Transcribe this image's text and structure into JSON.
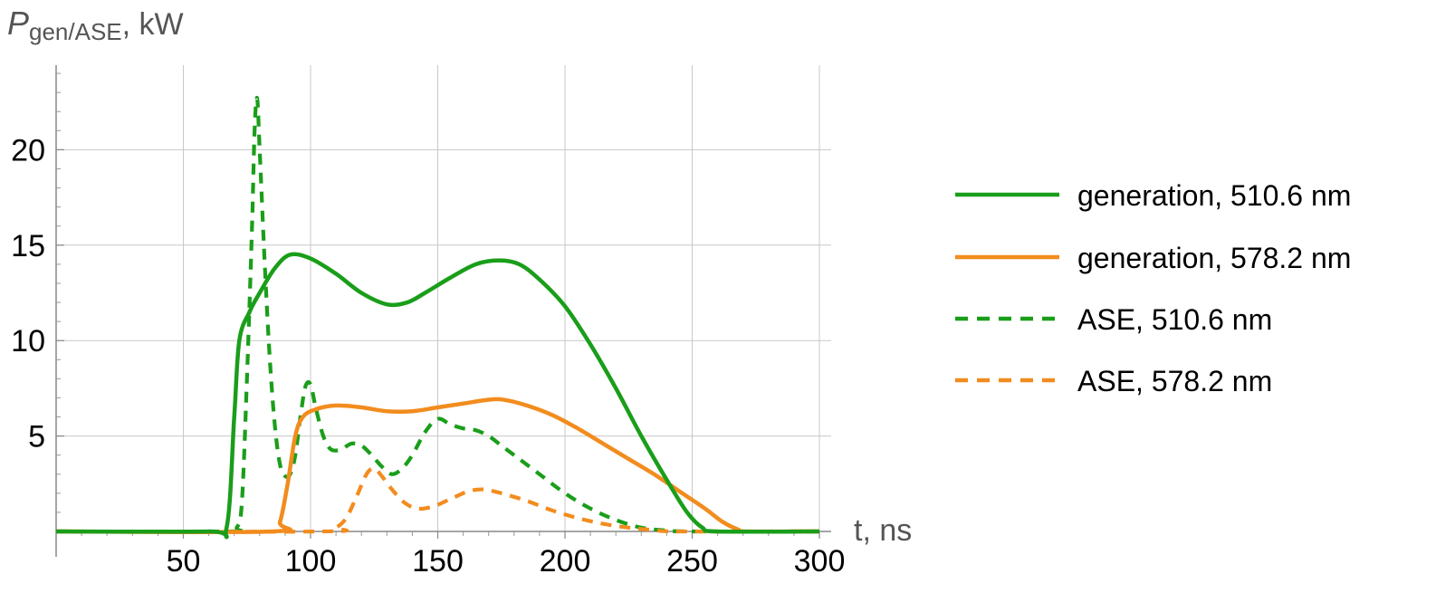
{
  "chart_data": {
    "type": "line",
    "ylabel": {
      "symbol": "P",
      "subscript": "gen/ASE",
      "unit": ", kW"
    },
    "xlabel": "t, ns",
    "xlim": [
      0,
      300
    ],
    "ylim": [
      0,
      25
    ],
    "x_ticks": [
      "50",
      "100",
      "150",
      "200",
      "250",
      "300"
    ],
    "y_ticks": [
      "5",
      "10",
      "15",
      "20"
    ],
    "grid": true,
    "legend_position": "right",
    "series": [
      {
        "name": "generation, 510.6 nm",
        "color": "#1a9e1a",
        "dash": false,
        "points": [
          [
            0,
            0
          ],
          [
            60,
            0
          ],
          [
            67,
            0.2
          ],
          [
            70,
            6
          ],
          [
            72,
            10
          ],
          [
            76,
            11.5
          ],
          [
            80,
            12.5
          ],
          [
            86,
            13.8
          ],
          [
            92,
            14.5
          ],
          [
            100,
            14.3
          ],
          [
            110,
            13.5
          ],
          [
            120,
            12.5
          ],
          [
            130,
            11.9
          ],
          [
            138,
            12.0
          ],
          [
            145,
            12.5
          ],
          [
            155,
            13.3
          ],
          [
            165,
            14.0
          ],
          [
            174,
            14.2
          ],
          [
            182,
            14.0
          ],
          [
            190,
            13.2
          ],
          [
            200,
            11.8
          ],
          [
            210,
            9.8
          ],
          [
            220,
            7.5
          ],
          [
            230,
            5.0
          ],
          [
            240,
            2.7
          ],
          [
            248,
            1.0
          ],
          [
            254,
            0.2
          ],
          [
            260,
            0
          ],
          [
            300,
            0
          ]
        ]
      },
      {
        "name": "generation, 578.2 nm",
        "color": "#f28c1e",
        "dash": false,
        "points": [
          [
            0,
            0
          ],
          [
            85,
            0
          ],
          [
            88,
            0.5
          ],
          [
            91,
            2.5
          ],
          [
            94,
            5.0
          ],
          [
            97,
            6.0
          ],
          [
            102,
            6.4
          ],
          [
            110,
            6.6
          ],
          [
            120,
            6.5
          ],
          [
            130,
            6.3
          ],
          [
            140,
            6.3
          ],
          [
            150,
            6.5
          ],
          [
            160,
            6.7
          ],
          [
            170,
            6.9
          ],
          [
            176,
            6.9
          ],
          [
            185,
            6.6
          ],
          [
            195,
            6.1
          ],
          [
            205,
            5.4
          ],
          [
            215,
            4.6
          ],
          [
            225,
            3.8
          ],
          [
            235,
            3.0
          ],
          [
            245,
            2.1
          ],
          [
            255,
            1.2
          ],
          [
            262,
            0.5
          ],
          [
            268,
            0.1
          ],
          [
            272,
            0
          ],
          [
            300,
            0
          ]
        ]
      },
      {
        "name": "ASE, 510.6 nm",
        "color": "#1a9e1a",
        "dash": true,
        "points": [
          [
            0,
            0
          ],
          [
            68,
            0
          ],
          [
            71,
            0.2
          ],
          [
            73,
            1.5
          ],
          [
            75,
            8
          ],
          [
            77,
            16
          ],
          [
            78,
            21
          ],
          [
            79,
            22.7
          ],
          [
            80,
            20
          ],
          [
            82,
            14
          ],
          [
            84,
            9
          ],
          [
            86,
            5.5
          ],
          [
            88,
            3.5
          ],
          [
            90,
            2.9
          ],
          [
            92,
            3.0
          ],
          [
            94,
            4.0
          ],
          [
            96,
            6.0
          ],
          [
            98,
            7.6
          ],
          [
            100,
            7.7
          ],
          [
            102,
            6.5
          ],
          [
            105,
            5.0
          ],
          [
            108,
            4.3
          ],
          [
            112,
            4.3
          ],
          [
            116,
            4.6
          ],
          [
            120,
            4.5
          ],
          [
            124,
            4.0
          ],
          [
            128,
            3.4
          ],
          [
            132,
            3.0
          ],
          [
            136,
            3.3
          ],
          [
            140,
            4.0
          ],
          [
            145,
            5.2
          ],
          [
            150,
            5.9
          ],
          [
            155,
            5.6
          ],
          [
            160,
            5.4
          ],
          [
            165,
            5.3
          ],
          [
            170,
            5.0
          ],
          [
            175,
            4.5
          ],
          [
            180,
            4.0
          ],
          [
            190,
            3.0
          ],
          [
            200,
            2.0
          ],
          [
            210,
            1.2
          ],
          [
            220,
            0.6
          ],
          [
            230,
            0.2
          ],
          [
            240,
            0.05
          ],
          [
            250,
            0
          ],
          [
            300,
            0
          ]
        ]
      },
      {
        "name": "ASE, 578.2 nm",
        "color": "#f28c1e",
        "dash": true,
        "points": [
          [
            0,
            0
          ],
          [
            105,
            0
          ],
          [
            110,
            0.2
          ],
          [
            114,
            0.7
          ],
          [
            118,
            1.8
          ],
          [
            122,
            3.0
          ],
          [
            125,
            3.3
          ],
          [
            128,
            2.9
          ],
          [
            132,
            2.2
          ],
          [
            137,
            1.5
          ],
          [
            142,
            1.2
          ],
          [
            148,
            1.3
          ],
          [
            155,
            1.7
          ],
          [
            162,
            2.1
          ],
          [
            168,
            2.2
          ],
          [
            175,
            2.0
          ],
          [
            185,
            1.6
          ],
          [
            195,
            1.1
          ],
          [
            205,
            0.7
          ],
          [
            215,
            0.4
          ],
          [
            225,
            0.2
          ],
          [
            235,
            0.07
          ],
          [
            245,
            0
          ],
          [
            300,
            0
          ]
        ]
      }
    ]
  }
}
